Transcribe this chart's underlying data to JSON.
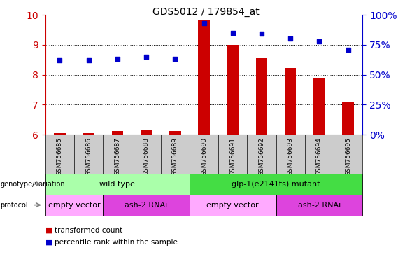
{
  "title": "GDS5012 / 179854_at",
  "samples": [
    "GSM756685",
    "GSM756686",
    "GSM756687",
    "GSM756688",
    "GSM756689",
    "GSM756690",
    "GSM756691",
    "GSM756692",
    "GSM756693",
    "GSM756694",
    "GSM756695"
  ],
  "transformed_count": [
    6.05,
    6.05,
    6.12,
    6.16,
    6.12,
    9.82,
    9.0,
    8.55,
    8.22,
    7.9,
    7.1
  ],
  "percentile_rank": [
    62,
    62,
    63,
    65,
    63,
    93,
    85,
    84,
    80,
    78,
    71
  ],
  "ylim": [
    6,
    10
  ],
  "yticks": [
    6,
    7,
    8,
    9,
    10
  ],
  "y2lim": [
    0,
    100
  ],
  "y2ticks": [
    0,
    25,
    50,
    75,
    100
  ],
  "bar_color": "#cc0000",
  "dot_color": "#0000cc",
  "bar_width": 0.4,
  "genotype_groups": [
    {
      "label": "wild type",
      "start": 0,
      "end": 4,
      "color": "#aaffaa"
    },
    {
      "label": "glp-1(e2141ts) mutant",
      "start": 5,
      "end": 10,
      "color": "#44dd44"
    }
  ],
  "protocol_groups": [
    {
      "label": "empty vector",
      "start": 0,
      "end": 1,
      "color": "#ffaaff"
    },
    {
      "label": "ash-2 RNAi",
      "start": 2,
      "end": 4,
      "color": "#dd44dd"
    },
    {
      "label": "empty vector",
      "start": 5,
      "end": 7,
      "color": "#ffaaff"
    },
    {
      "label": "ash-2 RNAi",
      "start": 8,
      "end": 10,
      "color": "#dd44dd"
    }
  ],
  "legend_items": [
    {
      "label": "transformed count",
      "color": "#cc0000"
    },
    {
      "label": "percentile rank within the sample",
      "color": "#0000cc"
    }
  ],
  "bar_color_left": "#cc0000",
  "y2label_color": "#0000cc",
  "xtick_bg_color": "#cccccc",
  "grid_color": "black"
}
